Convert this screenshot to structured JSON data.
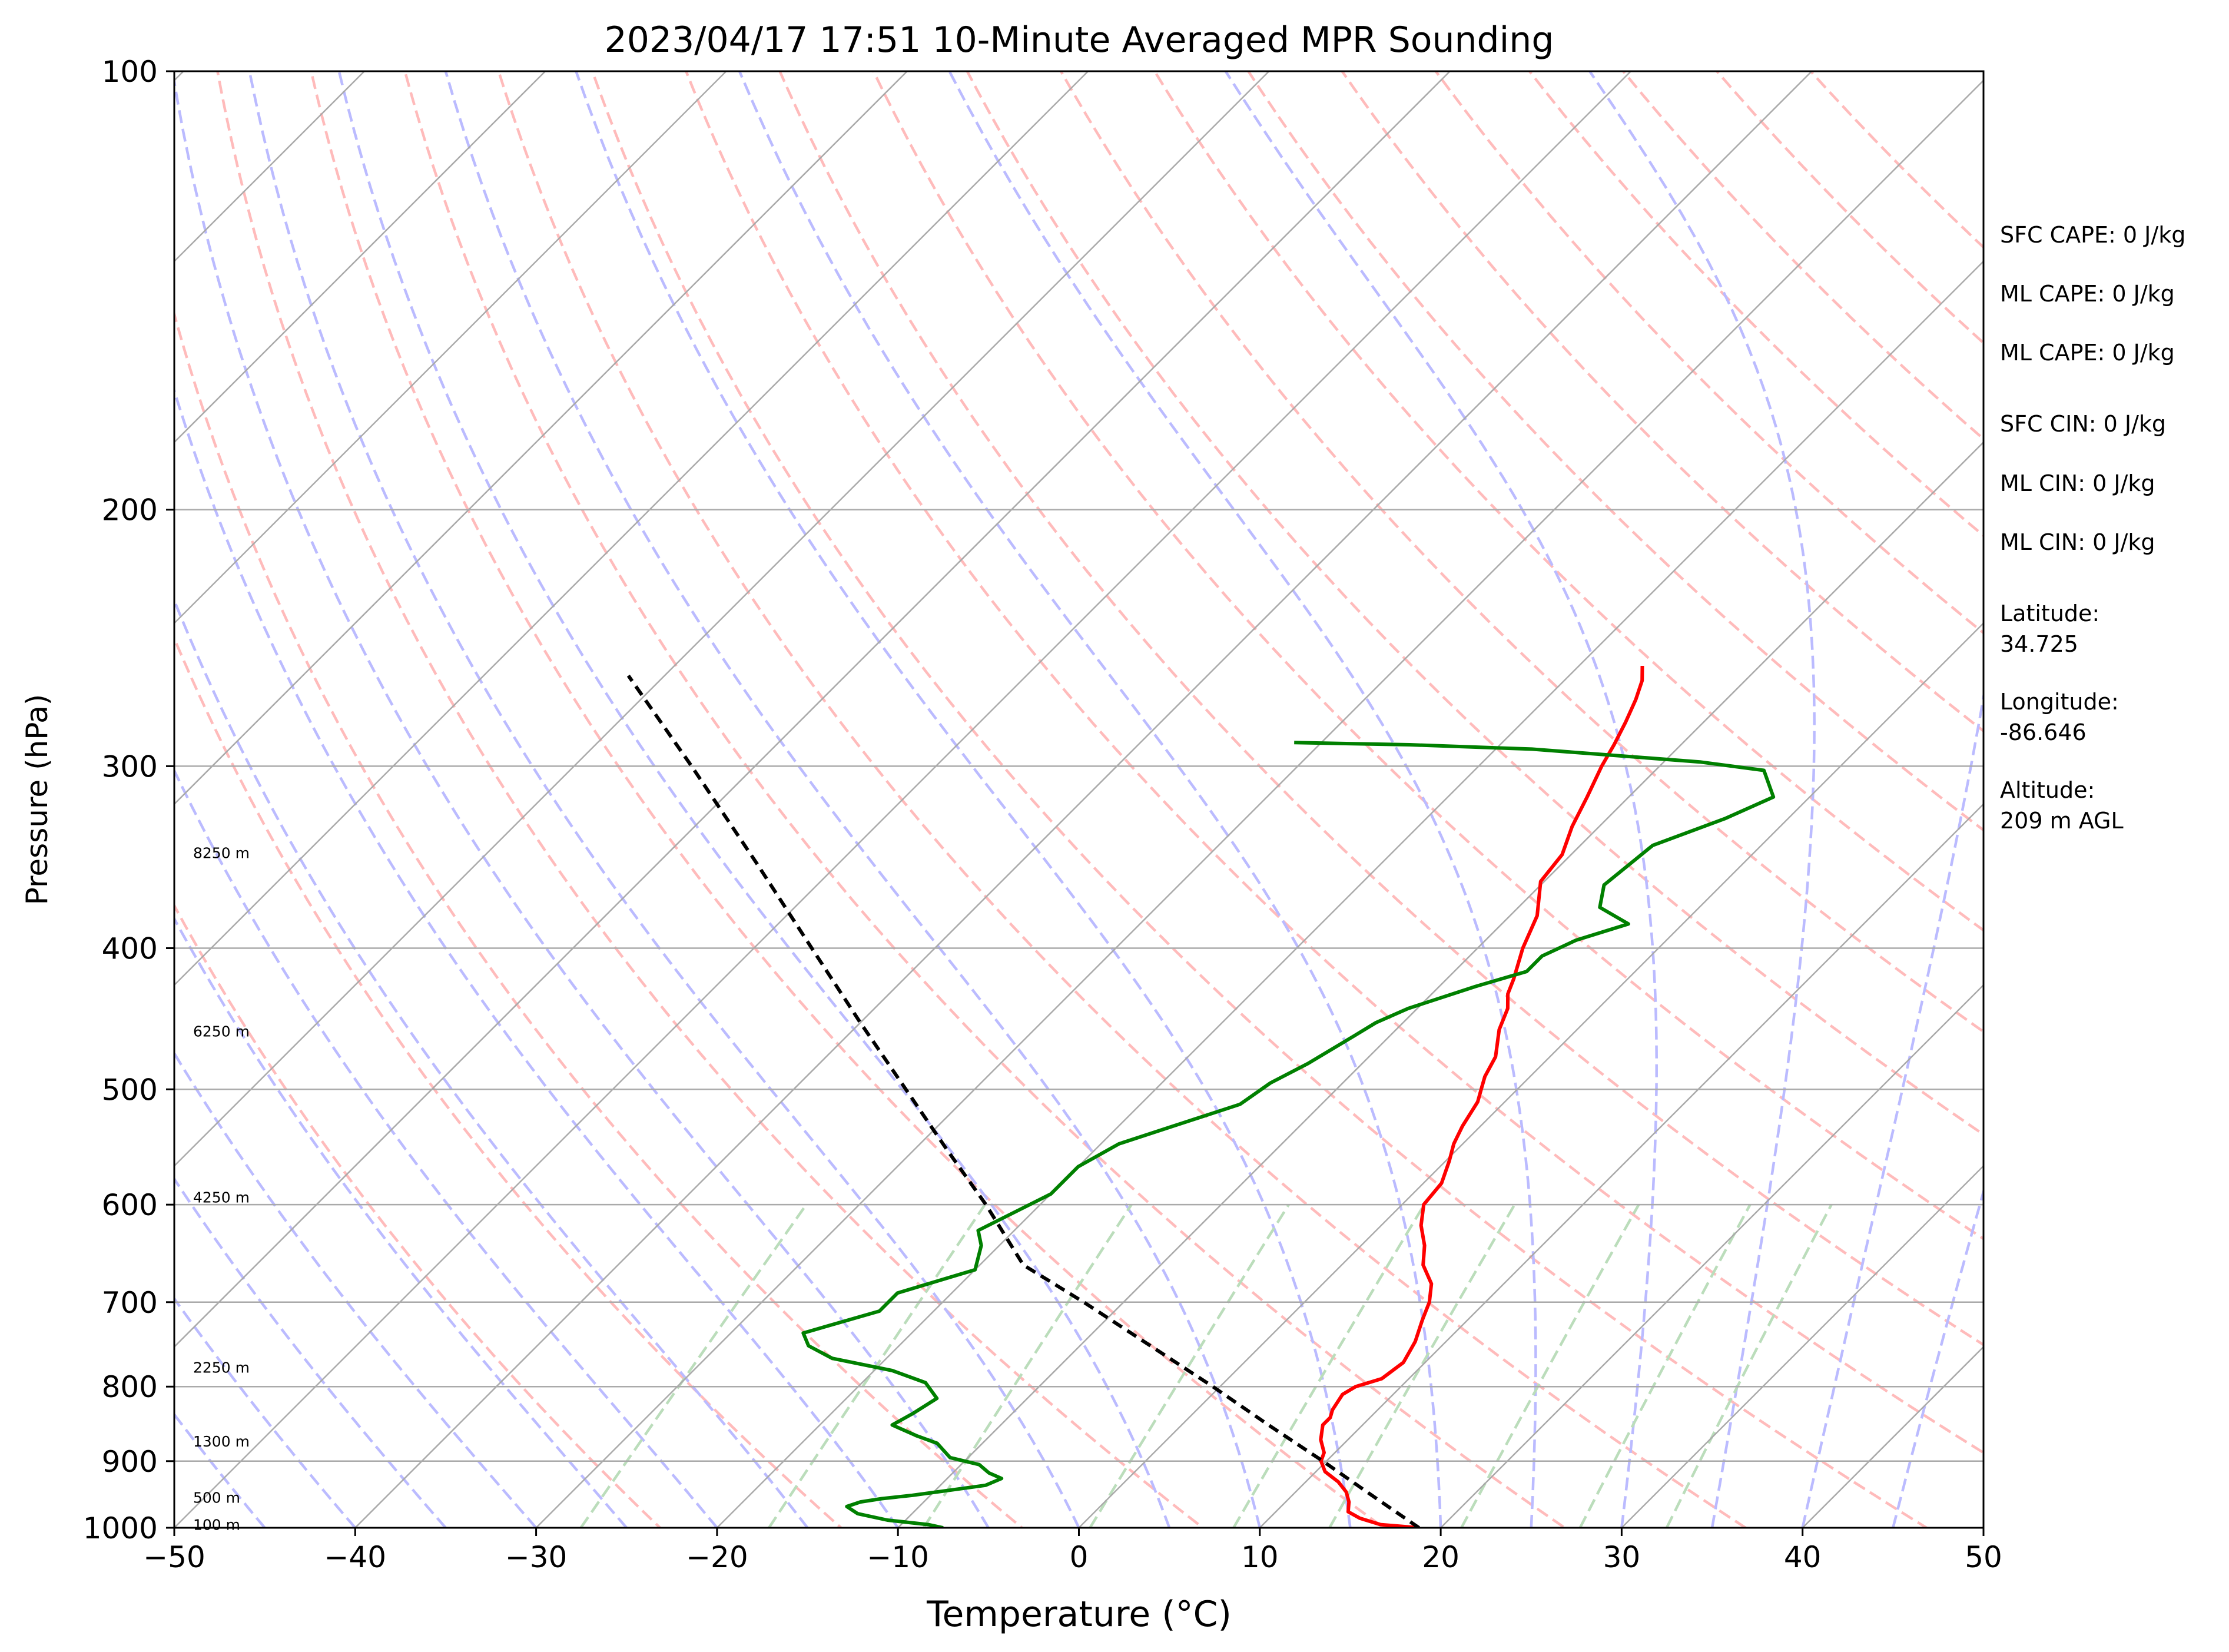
{
  "chart_data": {
    "type": "line",
    "subtype": "skew-t log-p diagram",
    "title": "2023/04/17 17:51 10-Minute Averaged MPR Sounding",
    "xlabel": "Temperature (°C)",
    "ylabel": "Pressure (hPa)",
    "xlim": [
      -50,
      50
    ],
    "ylim": [
      1000,
      100
    ],
    "y_scale": "log",
    "x_ticks": [
      "−50",
      "−40",
      "−30",
      "−20",
      "−10",
      "0",
      "10",
      "20",
      "30",
      "40",
      "50"
    ],
    "x_tick_values": [
      -50,
      -40,
      -30,
      -20,
      -10,
      0,
      10,
      20,
      30,
      40,
      50
    ],
    "y_ticks": [
      "100",
      "200",
      "300",
      "400",
      "500",
      "600",
      "700",
      "800",
      "900",
      "1000"
    ],
    "y_tick_values": [
      100,
      200,
      300,
      400,
      500,
      600,
      700,
      800,
      900,
      1000
    ],
    "grid": true,
    "height_labels": [
      {
        "text": "8250 m",
        "pressure": 344
      },
      {
        "text": "6250 m",
        "pressure": 456
      },
      {
        "text": "4250 m",
        "pressure": 593
      },
      {
        "text": "2250 m",
        "pressure": 776
      },
      {
        "text": "1300 m",
        "pressure": 872
      },
      {
        "text": "500 m",
        "pressure": 953
      },
      {
        "text": "100 m",
        "pressure": 995
      }
    ],
    "series": [
      {
        "role": "temperature",
        "color": "#ff0000",
        "points": [
          [
            1000,
            18.8
          ],
          [
            995,
            16.5
          ],
          [
            985,
            15.0
          ],
          [
            975,
            14.0
          ],
          [
            960,
            13.5
          ],
          [
            945,
            12.8
          ],
          [
            930,
            11.8
          ],
          [
            915,
            10.5
          ],
          [
            900,
            9.7
          ],
          [
            888,
            9.4
          ],
          [
            870,
            8.5
          ],
          [
            850,
            7.8
          ],
          [
            840,
            7.8
          ],
          [
            830,
            7.5
          ],
          [
            810,
            7.2
          ],
          [
            800,
            7.5
          ],
          [
            790,
            8.5
          ],
          [
            770,
            8.8
          ],
          [
            745,
            8.3
          ],
          [
            720,
            7.5
          ],
          [
            700,
            6.9
          ],
          [
            680,
            6.0
          ],
          [
            660,
            4.5
          ],
          [
            640,
            3.5
          ],
          [
            620,
            2.2
          ],
          [
            600,
            1.2
          ],
          [
            580,
            1.0
          ],
          [
            560,
            0.2
          ],
          [
            545,
            -0.5
          ],
          [
            530,
            -1.0
          ],
          [
            510,
            -1.5
          ],
          [
            500,
            -2.0
          ],
          [
            490,
            -2.5
          ],
          [
            475,
            -3.0
          ],
          [
            455,
            -4.3
          ],
          [
            440,
            -5.0
          ],
          [
            430,
            -5.8
          ],
          [
            420,
            -6.3
          ],
          [
            400,
            -7.5
          ],
          [
            380,
            -8.5
          ],
          [
            360,
            -10.2
          ],
          [
            345,
            -10.5
          ],
          [
            330,
            -11.5
          ],
          [
            315,
            -12.3
          ],
          [
            300,
            -13.2
          ],
          [
            290,
            -13.7
          ],
          [
            280,
            -14.3
          ],
          [
            270,
            -15.0
          ],
          [
            262,
            -15.7
          ],
          [
            256,
            -16.5
          ]
        ]
      },
      {
        "role": "dewpoint",
        "color": "#008000",
        "points": [
          [
            1000,
            -7.5
          ],
          [
            995,
            -8.5
          ],
          [
            988,
            -11.0
          ],
          [
            978,
            -13.0
          ],
          [
            967,
            -14.0
          ],
          [
            960,
            -13.5
          ],
          [
            955,
            -12.5
          ],
          [
            950,
            -11.0
          ],
          [
            935,
            -7.5
          ],
          [
            925,
            -7.0
          ],
          [
            917,
            -8.0
          ],
          [
            905,
            -9.0
          ],
          [
            895,
            -11.0
          ],
          [
            875,
            -12.5
          ],
          [
            865,
            -14.0
          ],
          [
            850,
            -16.0
          ],
          [
            835,
            -15.5
          ],
          [
            815,
            -15.0
          ],
          [
            795,
            -16.5
          ],
          [
            780,
            -19.0
          ],
          [
            765,
            -23.0
          ],
          [
            750,
            -25.0
          ],
          [
            735,
            -26.0
          ],
          [
            710,
            -23.0
          ],
          [
            690,
            -23.0
          ],
          [
            665,
            -20.0
          ],
          [
            640,
            -21.0
          ],
          [
            625,
            -22.0
          ],
          [
            590,
            -20.0
          ],
          [
            565,
            -20.0
          ],
          [
            545,
            -19.0
          ],
          [
            530,
            -17.0
          ],
          [
            512,
            -14.5
          ],
          [
            495,
            -14.0
          ],
          [
            480,
            -13.0
          ],
          [
            460,
            -12.0
          ],
          [
            450,
            -11.5
          ],
          [
            440,
            -10.5
          ],
          [
            425,
            -8.0
          ],
          [
            415,
            -6.0
          ],
          [
            405,
            -6.0
          ],
          [
            395,
            -5.0
          ],
          [
            385,
            -3.0
          ],
          [
            375,
            -5.5
          ],
          [
            362,
            -6.5
          ],
          [
            340,
            -6.0
          ],
          [
            326,
            -3.5
          ],
          [
            315,
            -2.0
          ],
          [
            302,
            -4.0
          ],
          [
            298,
            -8.0
          ],
          [
            292,
            -18.0
          ],
          [
            290,
            -25.0
          ],
          [
            289,
            -31.5
          ]
        ]
      },
      {
        "role": "parcel",
        "color": "#000000",
        "style": "dashed",
        "points": [
          [
            1000,
            18.8
          ],
          [
            950,
            14.4
          ],
          [
            900,
            9.8
          ],
          [
            850,
            4.8
          ],
          [
            800,
            -0.4
          ],
          [
            750,
            -6.1
          ],
          [
            700,
            -12.2
          ],
          [
            660,
            -17.6
          ],
          [
            600,
            -23.0
          ],
          [
            550,
            -28.2
          ],
          [
            500,
            -33.8
          ],
          [
            450,
            -40.0
          ],
          [
            400,
            -46.8
          ],
          [
            350,
            -54.5
          ],
          [
            300,
            -63.5
          ],
          [
            260,
            -72.0
          ]
        ]
      }
    ],
    "background_lines": {
      "isotherms": {
        "color": "#aaaaaa",
        "start": -140,
        "end": 50,
        "step": 10
      },
      "dry_adiabats": {
        "color": "#ffbbbb",
        "style": "dashed",
        "theta_min_k": 250,
        "theta_max_k": 450,
        "step": 10
      },
      "moist_adiabats": {
        "color": "#bbbbff",
        "style": "dashed",
        "bottom_temps_c": [
          -50,
          -45,
          -40,
          -35,
          -30,
          -25,
          -20,
          -15,
          -10,
          -5,
          0,
          5,
          10,
          15,
          20,
          25,
          30,
          35,
          40,
          45
        ]
      },
      "mixing_ratio": {
        "color": "#bbddbb",
        "style": "dashed",
        "top_pressure": 600,
        "g_per_kg": [
          0.4,
          1,
          2,
          4,
          7,
          10,
          16,
          24,
          32
        ]
      }
    }
  },
  "side_panel": [
    {
      "key": "sfc_cape",
      "text": "SFC CAPE: 0 J/kg"
    },
    {
      "key": "ml_cape_1",
      "text": "ML CAPE: 0 J/kg"
    },
    {
      "key": "ml_cape_2",
      "text": "ML CAPE: 0 J/kg"
    },
    {
      "key": "sfc_cin",
      "text": "SFC CIN: 0 J/kg"
    },
    {
      "key": "ml_cin_1",
      "text": "ML CIN: 0 J/kg"
    },
    {
      "key": "ml_cin_2",
      "text": "ML CIN: 0 J/kg"
    },
    {
      "key": "latitude_label",
      "text": "Latitude:"
    },
    {
      "key": "latitude_value",
      "text": "34.725"
    },
    {
      "key": "longitude_label",
      "text": "Longitude:"
    },
    {
      "key": "longitude_value",
      "text": "-86.646"
    },
    {
      "key": "altitude_label",
      "text": "Altitude:"
    },
    {
      "key": "altitude_value",
      "text": "209 m AGL"
    }
  ]
}
